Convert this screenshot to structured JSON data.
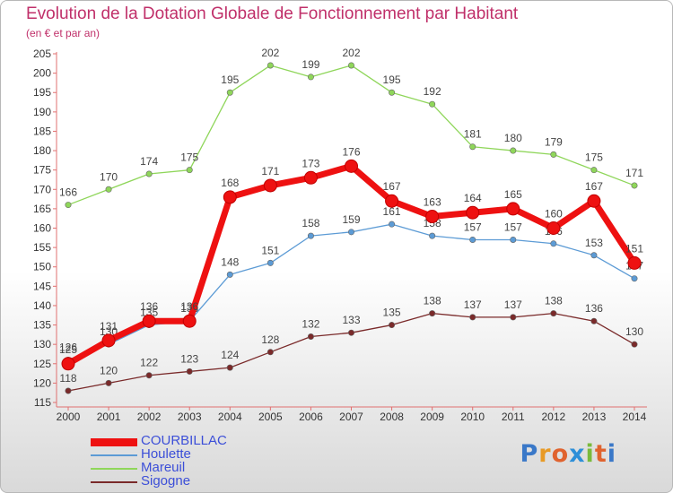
{
  "title": "Evolution de la Dotation Globale de Fonctionnement par Habitant",
  "subtitle": "(en € et par an)",
  "logo": {
    "letters": [
      {
        "ch": "P",
        "color": "#3a78c8"
      },
      {
        "ch": "r",
        "color": "#e89a25"
      },
      {
        "ch": "o",
        "color": "#e0632f"
      },
      {
        "ch": "x",
        "color": "#2e8fd8"
      },
      {
        "ch": "i",
        "color": "#7aba3c"
      },
      {
        "ch": "t",
        "color": "#e0632f"
      },
      {
        "ch": "i",
        "color": "#3a78c8"
      }
    ]
  },
  "chart_data": {
    "type": "line",
    "title": "Evolution de la Dotation Globale de Fonctionnement par Habitant",
    "subtitle": "(en € et par an)",
    "x": [
      "2000",
      "2001",
      "2002",
      "2003",
      "2004",
      "2005",
      "2006",
      "2007",
      "2008",
      "2009",
      "2010",
      "2011",
      "2012",
      "2013",
      "2014"
    ],
    "ylim": [
      115,
      205
    ],
    "yticks": [
      115,
      120,
      125,
      130,
      135,
      140,
      145,
      150,
      155,
      160,
      165,
      170,
      175,
      180,
      185,
      190,
      195,
      200,
      205
    ],
    "grid": false,
    "legend_position": "bottom-left",
    "series": [
      {
        "name": "COURBILLAC",
        "color": "#ee1111",
        "values": [
          125,
          131,
          136,
          136,
          168,
          171,
          173,
          176,
          167,
          163,
          164,
          165,
          160,
          167,
          151
        ]
      },
      {
        "name": "Houlette",
        "color": "#5c9bd5",
        "values": [
          126,
          130,
          135,
          136,
          148,
          151,
          158,
          159,
          161,
          158,
          157,
          157,
          156,
          153,
          147
        ]
      },
      {
        "name": "Mareuil",
        "color": "#8fd65a",
        "values": [
          166,
          170,
          174,
          175,
          195,
          202,
          199,
          202,
          195,
          192,
          181,
          180,
          179,
          175,
          171
        ]
      },
      {
        "name": "Sigogne",
        "color": "#7a2a2a",
        "values": [
          118,
          120,
          122,
          123,
          124,
          128,
          132,
          133,
          135,
          138,
          137,
          137,
          138,
          136,
          130
        ]
      }
    ]
  }
}
